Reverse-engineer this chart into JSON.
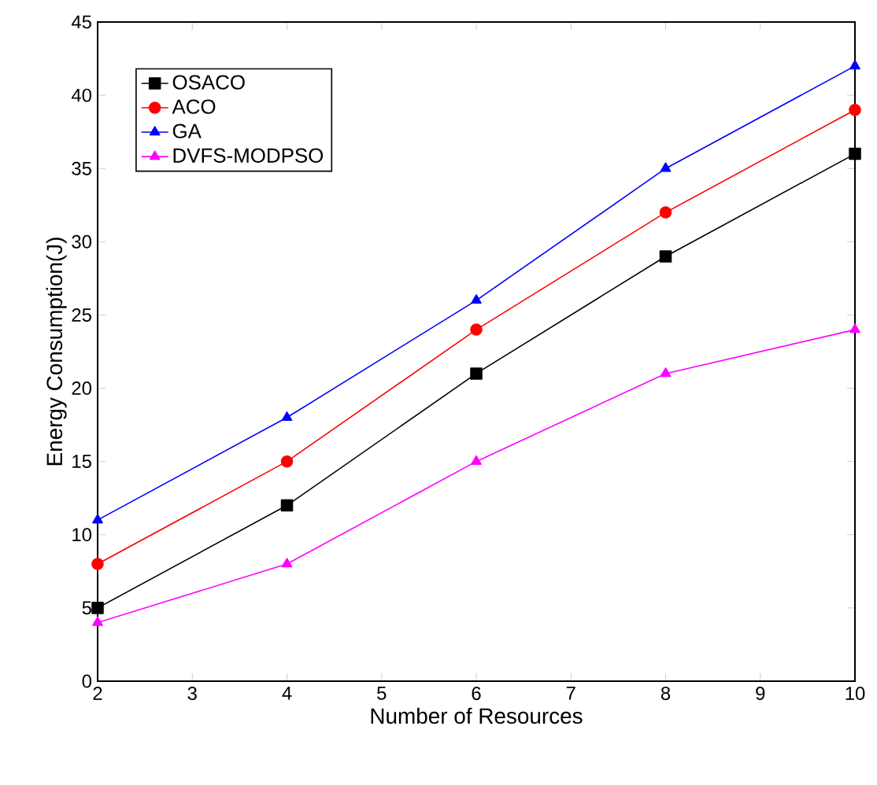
{
  "chart_data": {
    "type": "line",
    "xlabel": "Number of Resources",
    "ylabel": "Energy Consumption(J)",
    "x": [
      2,
      4,
      6,
      8,
      10
    ],
    "series": [
      {
        "name": "OSACO",
        "color": "#000000",
        "marker": "square",
        "values": [
          5,
          12,
          21,
          29,
          36
        ]
      },
      {
        "name": "ACO",
        "color": "#ff0000",
        "marker": "circle",
        "values": [
          8,
          15,
          24,
          32,
          39
        ]
      },
      {
        "name": "GA",
        "color": "#0000ff",
        "marker": "triangle",
        "values": [
          11,
          18,
          26,
          35,
          42
        ]
      },
      {
        "name": "DVFS-MODPSO",
        "color": "#ff00ff",
        "marker": "triangle",
        "values": [
          4,
          8,
          15,
          21,
          24
        ]
      }
    ],
    "xlim": [
      2,
      10
    ],
    "ylim": [
      0,
      45
    ],
    "xticks": [
      2,
      3,
      4,
      5,
      6,
      7,
      8,
      9,
      10
    ],
    "yticks": [
      0,
      5,
      10,
      15,
      20,
      25,
      30,
      35,
      40,
      45
    ],
    "legend": "top left",
    "grid": false,
    "line_style": "solid"
  }
}
